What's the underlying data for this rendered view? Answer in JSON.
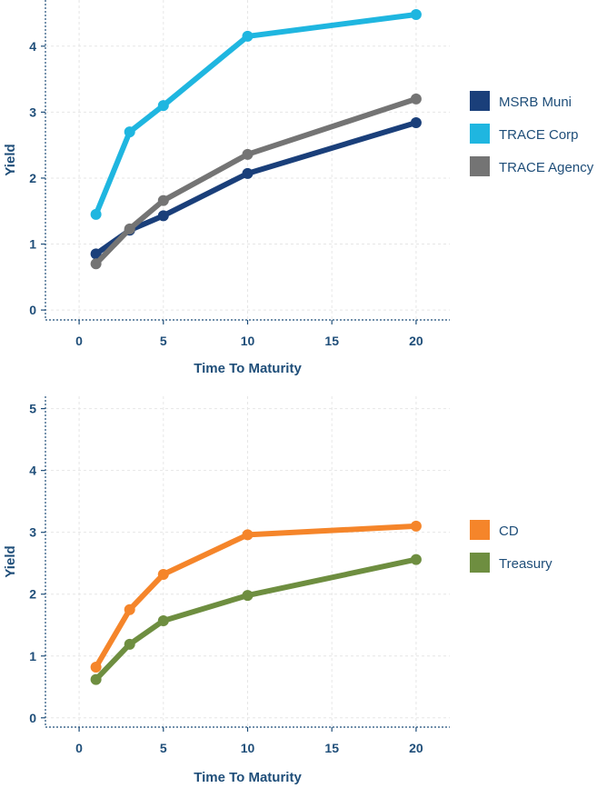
{
  "chart_data": [
    {
      "type": "line",
      "title": "",
      "xlabel": "Time To Maturity",
      "ylabel": "Yield",
      "xlim": [
        -2,
        22
      ],
      "ylim": [
        -0.15,
        4.7
      ],
      "xticks": [
        0,
        5,
        10,
        15,
        20
      ],
      "yticks": [
        0,
        1,
        2,
        3,
        4
      ],
      "grid": true,
      "legend_position": "right",
      "series": [
        {
          "name": "MSRB Muni",
          "color": "#1a3f7a",
          "x": [
            1,
            3,
            5,
            10,
            20
          ],
          "y": [
            0.85,
            1.21,
            1.43,
            2.07,
            2.84
          ]
        },
        {
          "name": "TRACE Corp",
          "color": "#1fb6e0",
          "x": [
            1,
            3,
            5,
            10,
            20
          ],
          "y": [
            1.45,
            2.7,
            3.1,
            4.15,
            4.48
          ]
        },
        {
          "name": "TRACE Agency",
          "color": "#747474",
          "x": [
            1,
            3,
            5,
            10,
            20
          ],
          "y": [
            0.7,
            1.23,
            1.66,
            2.36,
            3.2
          ]
        }
      ]
    },
    {
      "type": "line",
      "title": "",
      "xlabel": "Time To Maturity",
      "ylabel": "Yield",
      "xlim": [
        -2,
        22
      ],
      "ylim": [
        -0.15,
        5.2
      ],
      "xticks": [
        0,
        5,
        10,
        15,
        20
      ],
      "yticks": [
        0,
        1,
        2,
        3,
        4,
        5
      ],
      "grid": true,
      "legend_position": "right",
      "series": [
        {
          "name": "CD",
          "color": "#f5852a",
          "x": [
            1,
            3,
            5,
            10,
            20
          ],
          "y": [
            0.82,
            1.75,
            2.32,
            2.96,
            3.1
          ]
        },
        {
          "name": "Treasury",
          "color": "#6e8e40",
          "x": [
            1,
            3,
            5,
            10,
            20
          ],
          "y": [
            0.62,
            1.19,
            1.57,
            1.98,
            2.56
          ]
        }
      ]
    }
  ]
}
